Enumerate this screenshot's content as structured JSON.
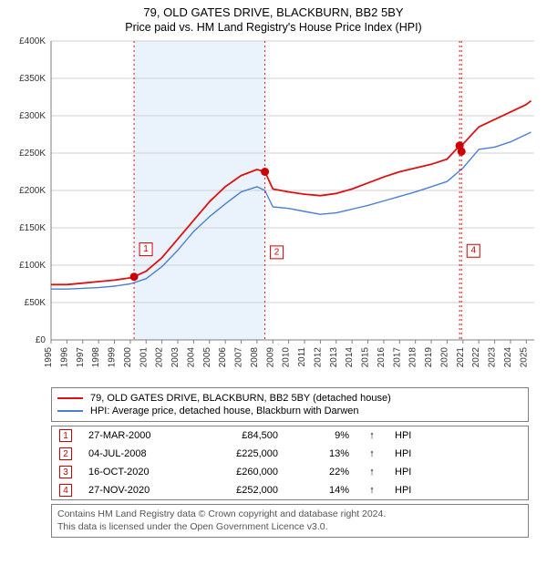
{
  "title_line1": "79, OLD GATES DRIVE, BLACKBURN, BB2 5BY",
  "title_line2": "Price paid vs. HM Land Registry's House Price Index (HPI)",
  "chart": {
    "type": "line",
    "background_color": "#ffffff",
    "grid_color": "#d0d0d0",
    "axis_color": "#808080",
    "shaded_region": {
      "x_start": 2000.24,
      "x_end": 2008.5,
      "fill": "#eaf2fb"
    },
    "xlim": [
      1995,
      2025.5
    ],
    "xticks": [
      1995,
      1996,
      1997,
      1998,
      1999,
      2000,
      2001,
      2002,
      2003,
      2004,
      2005,
      2006,
      2007,
      2008,
      2009,
      2010,
      2011,
      2012,
      2013,
      2014,
      2015,
      2016,
      2017,
      2018,
      2019,
      2020,
      2021,
      2022,
      2023,
      2024,
      2025
    ],
    "xtick_rotation": 90,
    "ylim": [
      0,
      400000
    ],
    "ytick_step": 50000,
    "ytick_labels": [
      "£0",
      "£50K",
      "£100K",
      "£150K",
      "£200K",
      "£250K",
      "£300K",
      "£350K",
      "£400K"
    ],
    "label_fontsize": 10,
    "series": [
      {
        "id": "property",
        "label": "79, OLD GATES DRIVE, BLACKBURN, BB2 5BY (detached house)",
        "color": "#dd1111",
        "line_width": 1.8,
        "x": [
          1995,
          1996,
          1997,
          1998,
          1999,
          2000,
          2000.24,
          2001,
          2002,
          2003,
          2004,
          2005,
          2006,
          2007,
          2008,
          2008.5,
          2009,
          2010,
          2011,
          2012,
          2013,
          2014,
          2015,
          2016,
          2017,
          2018,
          2019,
          2020,
          2020.79,
          2020.91,
          2021,
          2022,
          2023,
          2024,
          2025,
          2025.3
        ],
        "y": [
          74000,
          74000,
          76000,
          78000,
          80000,
          83000,
          84500,
          92000,
          110000,
          135000,
          160000,
          185000,
          205000,
          220000,
          228000,
          225000,
          202000,
          198000,
          195000,
          193000,
          196000,
          202000,
          210000,
          218000,
          225000,
          230000,
          235000,
          242000,
          260000,
          252000,
          262000,
          285000,
          295000,
          305000,
          315000,
          320000
        ]
      },
      {
        "id": "hpi",
        "label": "HPI: Average price, detached house, Blackburn with Darwen",
        "color": "#4a7fd6",
        "line_width": 1.4,
        "x": [
          1995,
          1996,
          1997,
          1998,
          1999,
          2000,
          2001,
          2002,
          2003,
          2004,
          2005,
          2006,
          2007,
          2008,
          2008.5,
          2009,
          2010,
          2011,
          2012,
          2013,
          2014,
          2015,
          2016,
          2017,
          2018,
          2019,
          2020,
          2021,
          2022,
          2023,
          2024,
          2025,
          2025.3
        ],
        "y": [
          68000,
          68000,
          69000,
          70000,
          72000,
          75000,
          82000,
          98000,
          120000,
          145000,
          165000,
          182000,
          198000,
          205000,
          200000,
          178000,
          176000,
          172000,
          168000,
          170000,
          175000,
          180000,
          186000,
          192000,
          198000,
          205000,
          212000,
          230000,
          255000,
          258000,
          265000,
          275000,
          278000
        ]
      }
    ],
    "sale_markers": [
      {
        "n": "1",
        "x": 2000.24,
        "y": 84500,
        "label_y": 120000
      },
      {
        "n": "2",
        "x": 2008.5,
        "y": 225000,
        "label_y": 116000
      },
      {
        "n": "3",
        "x": 2020.79,
        "y": 260000,
        "label_y": null
      },
      {
        "n": "4",
        "x": 2020.91,
        "y": 252000,
        "label_y": 118000
      }
    ],
    "dotted_line_color": "#dd1111",
    "marker_box_border": "#cc0000",
    "marker_dot_color": "#cc0000",
    "marker_dot_radius": 4.5
  },
  "legend": {
    "border_color": "#808080",
    "items": [
      {
        "color": "#dd1111",
        "label": "79, OLD GATES DRIVE, BLACKBURN, BB2 5BY (detached house)"
      },
      {
        "color": "#4a7fd6",
        "label": "HPI: Average price, detached house, Blackburn with Darwen"
      }
    ]
  },
  "sales": [
    {
      "n": "1",
      "date": "27-MAR-2000",
      "price": "£84,500",
      "pct": "9%",
      "arrow": "↑",
      "suffix": "HPI"
    },
    {
      "n": "2",
      "date": "04-JUL-2008",
      "price": "£225,000",
      "pct": "13%",
      "arrow": "↑",
      "suffix": "HPI"
    },
    {
      "n": "3",
      "date": "16-OCT-2020",
      "price": "£260,000",
      "pct": "22%",
      "arrow": "↑",
      "suffix": "HPI"
    },
    {
      "n": "4",
      "date": "27-NOV-2020",
      "price": "£252,000",
      "pct": "14%",
      "arrow": "↑",
      "suffix": "HPI"
    }
  ],
  "footer_line1": "Contains HM Land Registry data © Crown copyright and database right 2024.",
  "footer_line2": "This data is licensed under the Open Government Licence v3.0."
}
